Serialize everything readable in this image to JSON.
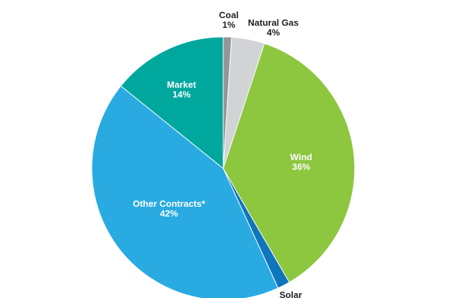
{
  "chart_data": {
    "type": "pie",
    "title": "",
    "slices": [
      {
        "label": "Coal",
        "percent_label": "1%",
        "value": 1,
        "color": "#939598"
      },
      {
        "label": "Natural Gas",
        "percent_label": "4%",
        "value": 4,
        "color": "#d1d3d4"
      },
      {
        "label": "Wind",
        "percent_label": "36%",
        "value": 36,
        "color": "#8dc63f"
      },
      {
        "label": "Solar",
        "percent_label": "",
        "value": 1.5,
        "color": "#0f75bc"
      },
      {
        "label": "Other Contracts*",
        "percent_label": "42%",
        "value": 42,
        "color": "#29abe2"
      },
      {
        "label": "Market",
        "percent_label": "14%",
        "value": 14,
        "color": "#00a79d"
      }
    ]
  }
}
